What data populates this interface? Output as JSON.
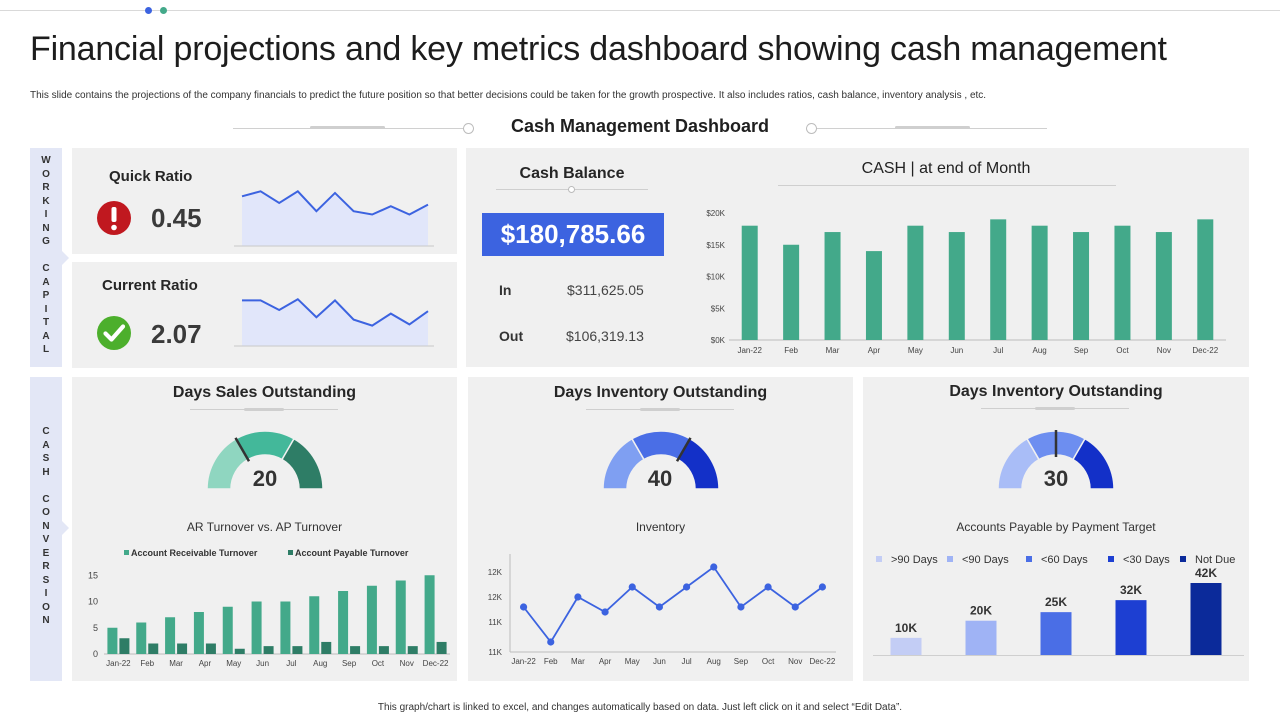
{
  "header": {
    "title": "Financial projections and key metrics dashboard showing cash management",
    "subtitle": "This slide contains the projections of the company financials to predict the future position so that better decisions could be taken for the growth prospective. It also includes ratios, cash balance, inventory  analysis , etc.",
    "dashboard_title": "Cash Management Dashboard"
  },
  "colors": {
    "green": "#43a98a",
    "dark_green": "#2e7d66",
    "blue": "#3c63e0",
    "panel": "#f0f0f0",
    "side": "#e3e7f6"
  },
  "sections": {
    "working_capital": "WORKING CAPITAL",
    "cash_conversion": "CASH CONVERSION"
  },
  "quick_ratio": {
    "label": "Quick Ratio",
    "value": "0.45",
    "icon": "exclamation-icon"
  },
  "current_ratio": {
    "label": "Current Ratio",
    "value": "2.07",
    "icon": "checkmark-icon"
  },
  "cash_balance": {
    "label": "Cash Balance",
    "value": "$180,785.66",
    "in_label": "In",
    "in_value": "$311,625.05",
    "out_label": "Out",
    "out_value": "$106,319.13"
  },
  "gauges": {
    "dso": {
      "title": "Days Sales Outstanding",
      "value": "20"
    },
    "dio": {
      "title": "Days Inventory Outstanding",
      "value": "40"
    },
    "dpo": {
      "title": "Days Inventory Outstanding",
      "value": "30"
    }
  },
  "footer": "This graph/chart is linked to excel, and changes automatically based on data. Just left click on it and select “Edit Data”.",
  "chart_data": [
    {
      "id": "quick_ratio_sparkline",
      "type": "area",
      "values": [
        0.6,
        0.66,
        0.52,
        0.66,
        0.42,
        0.64,
        0.42,
        0.38,
        0.48,
        0.38,
        0.5
      ]
    },
    {
      "id": "current_ratio_sparkline",
      "type": "area",
      "values": [
        1.9,
        1.9,
        1.5,
        1.95,
        1.2,
        1.9,
        1.1,
        0.85,
        1.35,
        0.9,
        1.45
      ]
    },
    {
      "id": "cash_end_of_month",
      "type": "bar",
      "title": "CASH | at end of Month",
      "categories": [
        "Jan-22",
        "Feb",
        "Mar",
        "Apr",
        "May",
        "Jun",
        "Jul",
        "Aug",
        "Sep",
        "Oct",
        "Nov",
        "Dec-22"
      ],
      "values": [
        18000,
        15000,
        17000,
        14000,
        18000,
        17000,
        19000,
        18000,
        17000,
        18000,
        17000,
        19000
      ],
      "yticks": [
        "$0K",
        "$5K",
        "$10K",
        "$15K",
        "$20K"
      ],
      "ylim": [
        0,
        20000
      ]
    },
    {
      "id": "ar_ap_turnover",
      "type": "bar",
      "title": "AR Turnover vs. AP Turnover",
      "categories": [
        "Jan-22",
        "Feb",
        "Mar",
        "Apr",
        "May",
        "Jun",
        "Jul",
        "Aug",
        "Sep",
        "Oct",
        "Nov",
        "Dec-22"
      ],
      "series": [
        {
          "name": "Account Receivable Turnover",
          "values": [
            5,
            6,
            7,
            8,
            9,
            10,
            10,
            11,
            12,
            13,
            14,
            15
          ]
        },
        {
          "name": "Account Payable Turnover",
          "values": [
            3,
            2,
            2,
            2,
            1,
            1.5,
            1.5,
            2.3,
            1.5,
            1.5,
            1.5,
            2.3
          ]
        }
      ],
      "yticks": [
        "0",
        "5",
        "10",
        "15"
      ],
      "ylim": [
        0,
        16
      ]
    },
    {
      "id": "inventory",
      "type": "line",
      "title": "Inventory",
      "categories": [
        "Jan-22",
        "Feb",
        "Mar",
        "Apr",
        "May",
        "Jun",
        "Jul",
        "Aug",
        "Sep",
        "Oct",
        "Nov",
        "Dec-22"
      ],
      "values": [
        11700,
        11000,
        11900,
        11600,
        12100,
        11700,
        12100,
        12500,
        11700,
        12100,
        11700,
        12100
      ],
      "yticks": [
        "11K",
        "11K",
        "12K",
        "12K"
      ],
      "ylim": [
        10800,
        12600
      ]
    },
    {
      "id": "accounts_payable",
      "type": "bar",
      "title": "Accounts Payable by Payment Target",
      "categories": [
        ">90 Days",
        "<90 Days",
        "<60 Days",
        "<30 Days",
        "Not Due"
      ],
      "values": [
        10,
        20,
        25,
        32,
        42
      ],
      "labels": [
        "10K",
        "20K",
        "25K",
        "32K",
        "42K"
      ],
      "colors": [
        "#c3cdf5",
        "#9fb3f5",
        "#4a6ee6",
        "#1d3fd2",
        "#0b2a9a"
      ]
    },
    {
      "id": "dso_gauge",
      "type": "pie",
      "value": 20,
      "segments": [
        "#8fd6c0",
        "#43b89a",
        "#2e7d66"
      ]
    },
    {
      "id": "dio_gauge",
      "type": "pie",
      "value": 40,
      "segments": [
        "#7f9ff2",
        "#4a6ee6",
        "#1330c8"
      ]
    },
    {
      "id": "dpo_gauge",
      "type": "pie",
      "value": 30,
      "segments": [
        "#a9bdf7",
        "#6d8ef0",
        "#1330c8"
      ]
    }
  ]
}
